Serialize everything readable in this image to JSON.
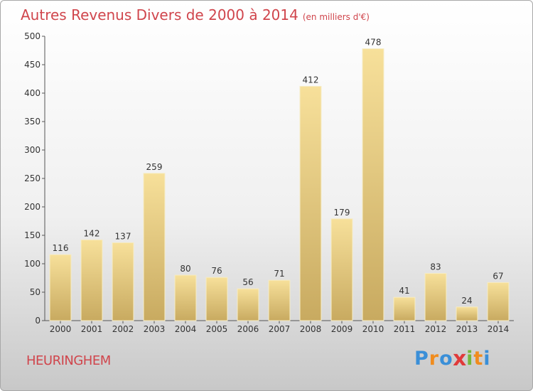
{
  "header": {
    "title": "Autres Revenus Divers de 2000 à 2014",
    "unit_note": "(en milliers d'€)"
  },
  "footer": {
    "location": "HEURINGHEM",
    "logo_letters": [
      "P",
      "r",
      "o",
      "x",
      "i",
      "t",
      "i"
    ],
    "logo_colors": [
      "#3a8fd8",
      "#f08c1e",
      "#3a8fd8",
      "#e03a3a",
      "#74b83a",
      "#f08c1e",
      "#3a8fd8"
    ]
  },
  "chart_data": {
    "type": "bar",
    "title": "Autres Revenus Divers de 2000 à 2014",
    "subtitle": "(en milliers d'€)",
    "categories": [
      "2000",
      "2001",
      "2002",
      "2003",
      "2004",
      "2005",
      "2006",
      "2007",
      "2008",
      "2009",
      "2010",
      "2011",
      "2012",
      "2013",
      "2014"
    ],
    "values": [
      116,
      142,
      137,
      259,
      80,
      76,
      56,
      71,
      412,
      179,
      478,
      41,
      83,
      24,
      67
    ],
    "ylim": [
      0,
      500
    ],
    "yticks": [
      0,
      50,
      100,
      150,
      200,
      250,
      300,
      350,
      400,
      450,
      500
    ],
    "grid": false,
    "bar_color_top": "#f7e09a",
    "bar_color_bottom": "#c8aa60"
  }
}
